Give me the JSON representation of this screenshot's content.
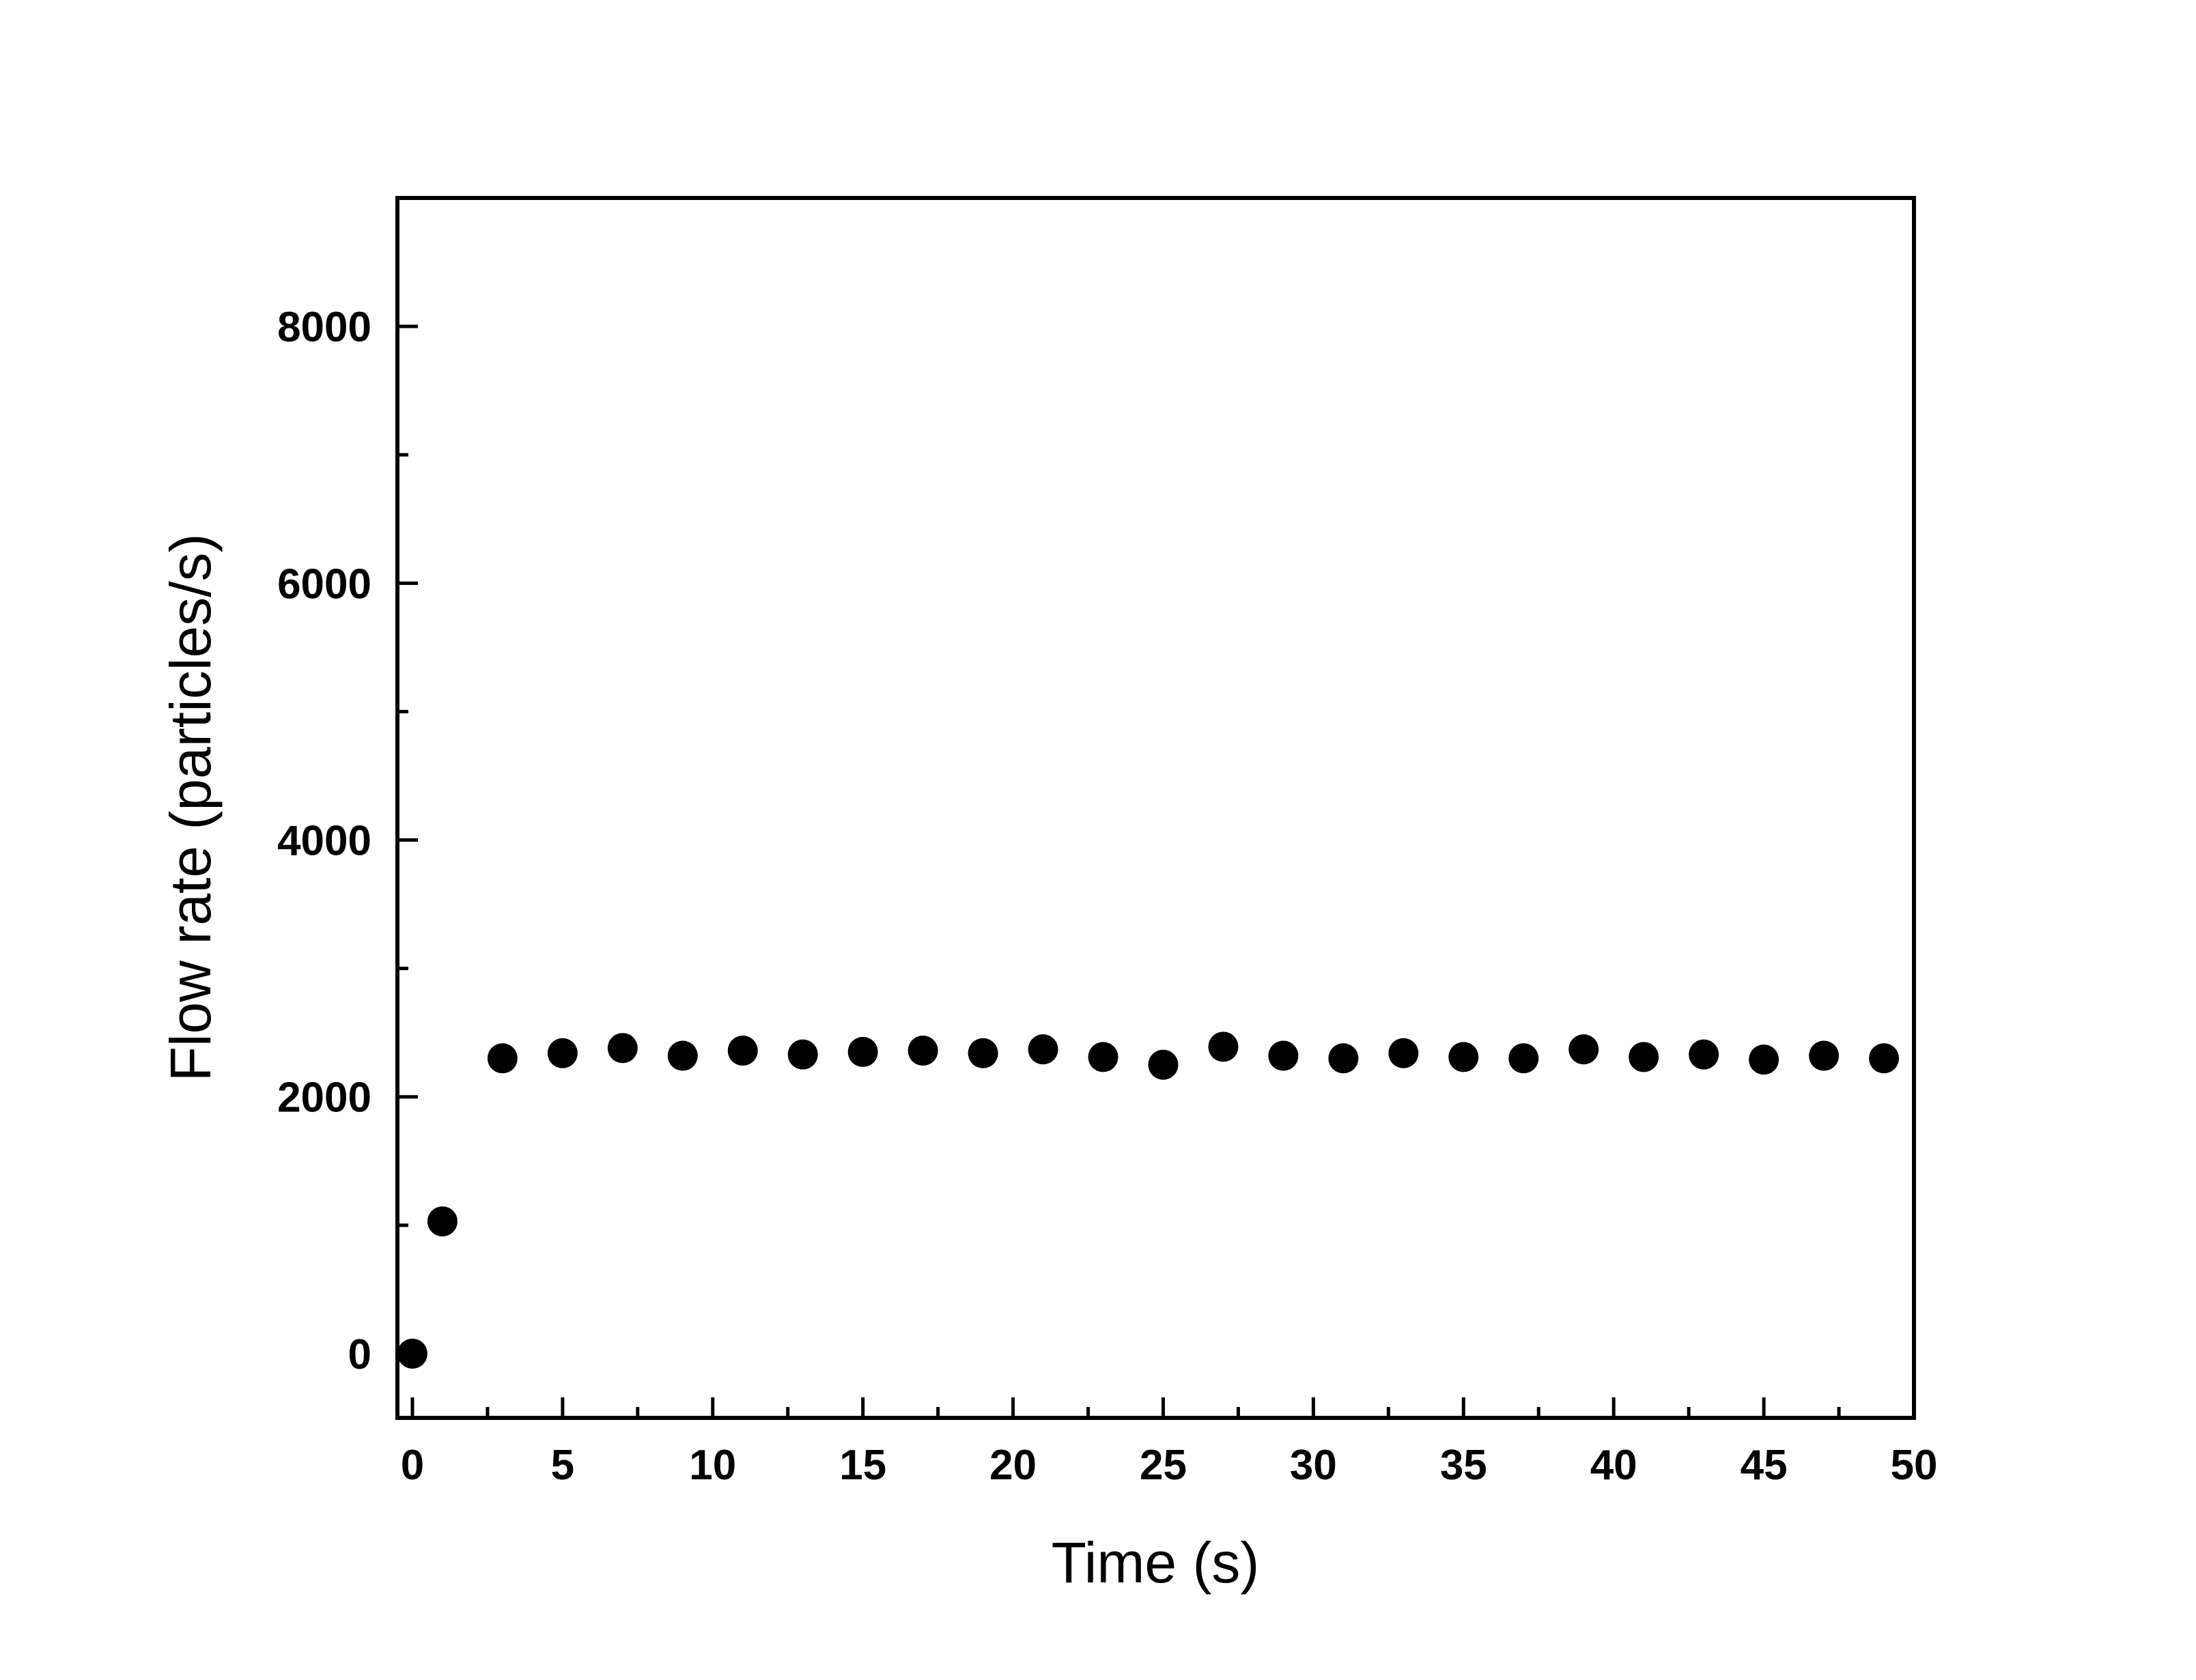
{
  "chart_data": {
    "type": "scatter",
    "title": "",
    "xlabel": "Time (s)",
    "ylabel": "Flow rate (particles/s)",
    "xlim": [
      -0.5,
      50
    ],
    "ylim": [
      -500,
      9000
    ],
    "xticks": [
      0,
      5,
      10,
      15,
      20,
      25,
      30,
      35,
      40,
      45,
      50
    ],
    "xtick_labels": [
      "0",
      "5",
      "10",
      "15",
      "20",
      "25",
      "30",
      "35",
      "40",
      "45",
      "50"
    ],
    "x_minor_ticks": [
      2.5,
      7.5,
      12.5,
      17.5,
      22.5,
      27.5,
      32.5,
      37.5,
      42.5,
      47.5
    ],
    "yticks": [
      0,
      2000,
      4000,
      6000,
      8000
    ],
    "ytick_labels": [
      "0",
      "2000",
      "4000",
      "6000",
      "8000"
    ],
    "y_minor_ticks": [
      1000,
      3000,
      5000,
      7000
    ],
    "grid": false,
    "marker": "filled-circle",
    "marker_color": "#000000",
    "series": [
      {
        "x": [
          0,
          1,
          3,
          5,
          7,
          9,
          11,
          13,
          15,
          17,
          19,
          21,
          23,
          25,
          27,
          29,
          31,
          33,
          35,
          37,
          39,
          41,
          43,
          45,
          47,
          49
        ],
        "y": [
          0,
          1030,
          2300,
          2340,
          2380,
          2320,
          2360,
          2330,
          2350,
          2360,
          2340,
          2370,
          2310,
          2250,
          2390,
          2320,
          2300,
          2340,
          2310,
          2300,
          2370,
          2310,
          2330,
          2290,
          2320,
          2300
        ]
      }
    ]
  }
}
